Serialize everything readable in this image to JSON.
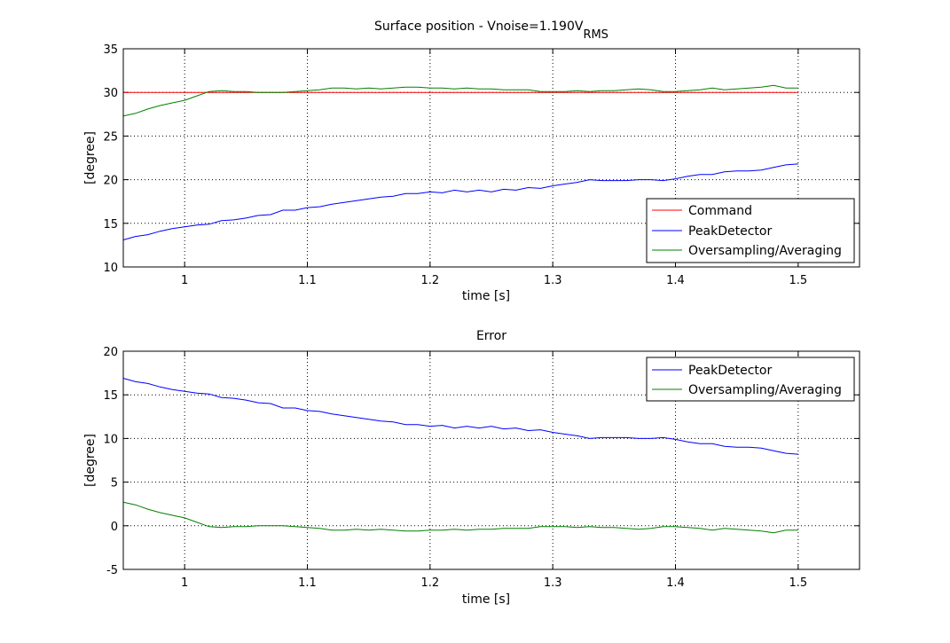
{
  "chart_data": [
    {
      "type": "line",
      "title": "Surface position - Vnoise=1.190V",
      "title_subscript": "RMS",
      "xlabel": "time [s]",
      "ylabel": "[degree]",
      "xlim": [
        0.95,
        1.55
      ],
      "ylim": [
        10,
        35
      ],
      "xticks": [
        1,
        1.1,
        1.2,
        1.3,
        1.4,
        1.5
      ],
      "yticks": [
        10,
        15,
        20,
        25,
        30,
        35
      ],
      "xtick_labels": [
        "1",
        "1.1",
        "1.2",
        "1.3",
        "1.4",
        "1.5"
      ],
      "ytick_labels": [
        "10",
        "15",
        "20",
        "25",
        "30",
        "35"
      ],
      "grid": true,
      "legend_position": "bottom-right",
      "series": [
        {
          "name": "Command",
          "color": "#ff0000",
          "x": [
            0.95,
            1.5
          ],
          "y": [
            30,
            30
          ]
        },
        {
          "name": "PeakDetector",
          "color": "#0000ff",
          "x": [
            0.95,
            0.96,
            0.97,
            0.98,
            0.99,
            1.0,
            1.01,
            1.02,
            1.03,
            1.04,
            1.05,
            1.06,
            1.07,
            1.08,
            1.09,
            1.1,
            1.11,
            1.12,
            1.13,
            1.14,
            1.15,
            1.16,
            1.17,
            1.18,
            1.19,
            1.2,
            1.21,
            1.22,
            1.23,
            1.24,
            1.25,
            1.26,
            1.27,
            1.28,
            1.29,
            1.3,
            1.31,
            1.32,
            1.33,
            1.34,
            1.35,
            1.36,
            1.37,
            1.38,
            1.39,
            1.4,
            1.41,
            1.42,
            1.43,
            1.44,
            1.45,
            1.46,
            1.47,
            1.48,
            1.49,
            1.5
          ],
          "y": [
            13.1,
            13.5,
            13.7,
            14.1,
            14.4,
            14.6,
            14.8,
            14.9,
            15.3,
            15.4,
            15.6,
            15.9,
            16.0,
            16.5,
            16.5,
            16.8,
            16.9,
            17.2,
            17.4,
            17.6,
            17.8,
            18.0,
            18.1,
            18.4,
            18.4,
            18.6,
            18.5,
            18.8,
            18.6,
            18.8,
            18.6,
            18.9,
            18.8,
            19.1,
            19.0,
            19.3,
            19.5,
            19.7,
            20.0,
            19.9,
            19.9,
            19.9,
            20.0,
            20.0,
            19.9,
            20.1,
            20.4,
            20.6,
            20.6,
            20.9,
            21.0,
            21.0,
            21.1,
            21.4,
            21.7,
            21.8
          ]
        },
        {
          "name": "Oversampling/Averaging",
          "color": "#008000",
          "x": [
            0.95,
            0.96,
            0.97,
            0.98,
            0.99,
            1.0,
            1.01,
            1.02,
            1.03,
            1.04,
            1.05,
            1.06,
            1.07,
            1.08,
            1.09,
            1.1,
            1.11,
            1.12,
            1.13,
            1.14,
            1.15,
            1.16,
            1.17,
            1.18,
            1.19,
            1.2,
            1.21,
            1.22,
            1.23,
            1.24,
            1.25,
            1.26,
            1.27,
            1.28,
            1.29,
            1.3,
            1.31,
            1.32,
            1.33,
            1.34,
            1.35,
            1.36,
            1.37,
            1.38,
            1.39,
            1.4,
            1.41,
            1.42,
            1.43,
            1.44,
            1.45,
            1.46,
            1.47,
            1.48,
            1.49,
            1.5
          ],
          "y": [
            27.3,
            27.6,
            28.1,
            28.5,
            28.8,
            29.1,
            29.6,
            30.1,
            30.2,
            30.1,
            30.1,
            30.0,
            30.0,
            30.0,
            30.1,
            30.2,
            30.3,
            30.5,
            30.5,
            30.4,
            30.5,
            30.4,
            30.5,
            30.6,
            30.6,
            30.5,
            30.5,
            30.4,
            30.5,
            30.4,
            30.4,
            30.3,
            30.3,
            30.3,
            30.1,
            30.1,
            30.1,
            30.2,
            30.1,
            30.2,
            30.2,
            30.3,
            30.4,
            30.3,
            30.1,
            30.1,
            30.2,
            30.3,
            30.5,
            30.3,
            30.4,
            30.5,
            30.6,
            30.8,
            30.5,
            30.5
          ]
        }
      ]
    },
    {
      "type": "line",
      "title": "Error",
      "xlabel": "time [s]",
      "ylabel": "[degree]",
      "xlim": [
        0.95,
        1.55
      ],
      "ylim": [
        -5,
        20
      ],
      "xticks": [
        1,
        1.1,
        1.2,
        1.3,
        1.4,
        1.5
      ],
      "yticks": [
        -5,
        0,
        5,
        10,
        15,
        20
      ],
      "xtick_labels": [
        "1",
        "1.1",
        "1.2",
        "1.3",
        "1.4",
        "1.5"
      ],
      "ytick_labels": [
        "-5",
        "0",
        "5",
        "10",
        "15",
        "20"
      ],
      "grid": true,
      "legend_position": "top-right",
      "series": [
        {
          "name": "PeakDetector",
          "color": "#0000ff",
          "x": [
            0.95,
            0.96,
            0.97,
            0.98,
            0.99,
            1.0,
            1.01,
            1.02,
            1.03,
            1.04,
            1.05,
            1.06,
            1.07,
            1.08,
            1.09,
            1.1,
            1.11,
            1.12,
            1.13,
            1.14,
            1.15,
            1.16,
            1.17,
            1.18,
            1.19,
            1.2,
            1.21,
            1.22,
            1.23,
            1.24,
            1.25,
            1.26,
            1.27,
            1.28,
            1.29,
            1.3,
            1.31,
            1.32,
            1.33,
            1.34,
            1.35,
            1.36,
            1.37,
            1.38,
            1.39,
            1.4,
            1.41,
            1.42,
            1.43,
            1.44,
            1.45,
            1.46,
            1.47,
            1.48,
            1.49,
            1.5
          ],
          "y": [
            16.9,
            16.5,
            16.3,
            15.9,
            15.6,
            15.4,
            15.2,
            15.1,
            14.7,
            14.6,
            14.4,
            14.1,
            14.0,
            13.5,
            13.5,
            13.2,
            13.1,
            12.8,
            12.6,
            12.4,
            12.2,
            12.0,
            11.9,
            11.6,
            11.6,
            11.4,
            11.5,
            11.2,
            11.4,
            11.2,
            11.4,
            11.1,
            11.2,
            10.9,
            11.0,
            10.7,
            10.5,
            10.3,
            10.0,
            10.1,
            10.1,
            10.1,
            10.0,
            10.0,
            10.1,
            9.9,
            9.6,
            9.4,
            9.4,
            9.1,
            9.0,
            9.0,
            8.9,
            8.6,
            8.3,
            8.2
          ]
        },
        {
          "name": "Oversampling/Averaging",
          "color": "#008000",
          "x": [
            0.95,
            0.96,
            0.97,
            0.98,
            0.99,
            1.0,
            1.01,
            1.02,
            1.03,
            1.04,
            1.05,
            1.06,
            1.07,
            1.08,
            1.09,
            1.1,
            1.11,
            1.12,
            1.13,
            1.14,
            1.15,
            1.16,
            1.17,
            1.18,
            1.19,
            1.2,
            1.21,
            1.22,
            1.23,
            1.24,
            1.25,
            1.26,
            1.27,
            1.28,
            1.29,
            1.3,
            1.31,
            1.32,
            1.33,
            1.34,
            1.35,
            1.36,
            1.37,
            1.38,
            1.39,
            1.4,
            1.41,
            1.42,
            1.43,
            1.44,
            1.45,
            1.46,
            1.47,
            1.48,
            1.49,
            1.5
          ],
          "y": [
            2.7,
            2.4,
            1.9,
            1.5,
            1.2,
            0.9,
            0.4,
            -0.1,
            -0.2,
            -0.1,
            -0.1,
            0.0,
            0.0,
            0.0,
            -0.1,
            -0.2,
            -0.3,
            -0.5,
            -0.5,
            -0.4,
            -0.5,
            -0.4,
            -0.5,
            -0.6,
            -0.6,
            -0.5,
            -0.5,
            -0.4,
            -0.5,
            -0.4,
            -0.4,
            -0.3,
            -0.3,
            -0.3,
            -0.1,
            -0.1,
            -0.1,
            -0.2,
            -0.1,
            -0.2,
            -0.2,
            -0.3,
            -0.4,
            -0.3,
            -0.1,
            -0.1,
            -0.2,
            -0.3,
            -0.5,
            -0.3,
            -0.4,
            -0.5,
            -0.6,
            -0.8,
            -0.5,
            -0.5
          ]
        }
      ]
    }
  ]
}
